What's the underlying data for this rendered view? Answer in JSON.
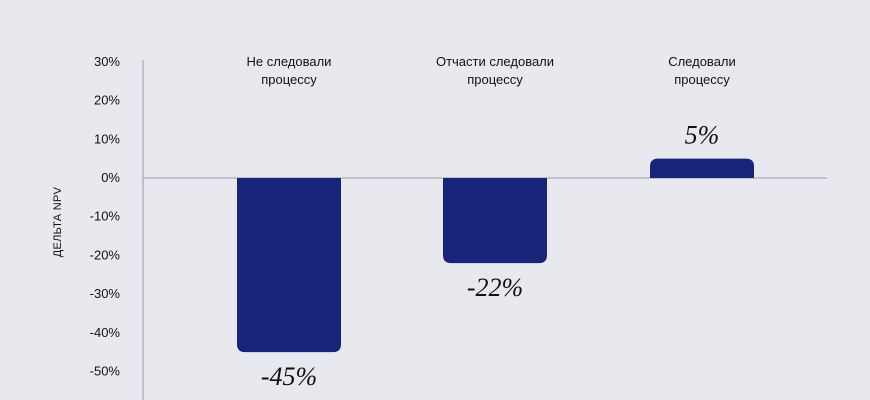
{
  "chart_data": {
    "type": "bar",
    "ylabel": "ДЕЛЬТА NPV",
    "categories": [
      [
        "Не следовали",
        "процессу"
      ],
      [
        "Отчасти следовали",
        "процессу"
      ],
      [
        "Следовали",
        "процессу"
      ]
    ],
    "values": [
      -45,
      -22,
      5
    ],
    "data_labels": [
      "-45%",
      "-22%",
      "5%"
    ],
    "yticks": [
      30,
      20,
      10,
      0,
      -10,
      -20,
      -30,
      -40,
      -50
    ],
    "ytick_labels": [
      "30%",
      "20%",
      "10%",
      "0%",
      "-10%",
      "-20%",
      "-30%",
      "-40%",
      "-50%"
    ],
    "ylim": [
      -55,
      30
    ],
    "grid": false,
    "bar_color": "#172479",
    "background": "#e8e9ef"
  }
}
